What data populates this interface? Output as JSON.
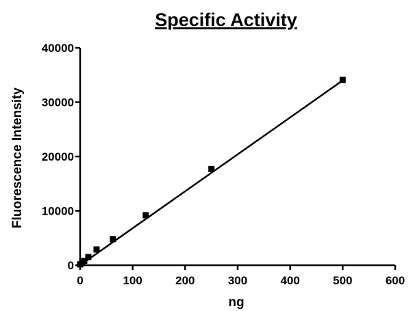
{
  "chart_data": {
    "type": "scatter",
    "title": "Specific Activity",
    "xlabel": "ng",
    "ylabel": "Fluorescence Intensity",
    "xlim": [
      0,
      600
    ],
    "ylim": [
      0,
      40000
    ],
    "x_ticks": [
      "0",
      "100",
      "200",
      "300",
      "400",
      "500",
      "600"
    ],
    "y_ticks": [
      "0",
      "10000",
      "20000",
      "30000",
      "40000"
    ],
    "grid": false,
    "legend": "none",
    "series": [
      {
        "x": [
          0,
          3.9,
          7.8,
          15.6,
          31.25,
          62.5,
          125,
          250,
          500
        ],
        "y": [
          150,
          400,
          800,
          1500,
          2900,
          4800,
          9200,
          17700,
          34100
        ]
      }
    ],
    "fit_line": {
      "x": [
        0,
        500
      ],
      "y": [
        0,
        34000
      ]
    },
    "colors": {
      "marks": "#000000"
    }
  }
}
